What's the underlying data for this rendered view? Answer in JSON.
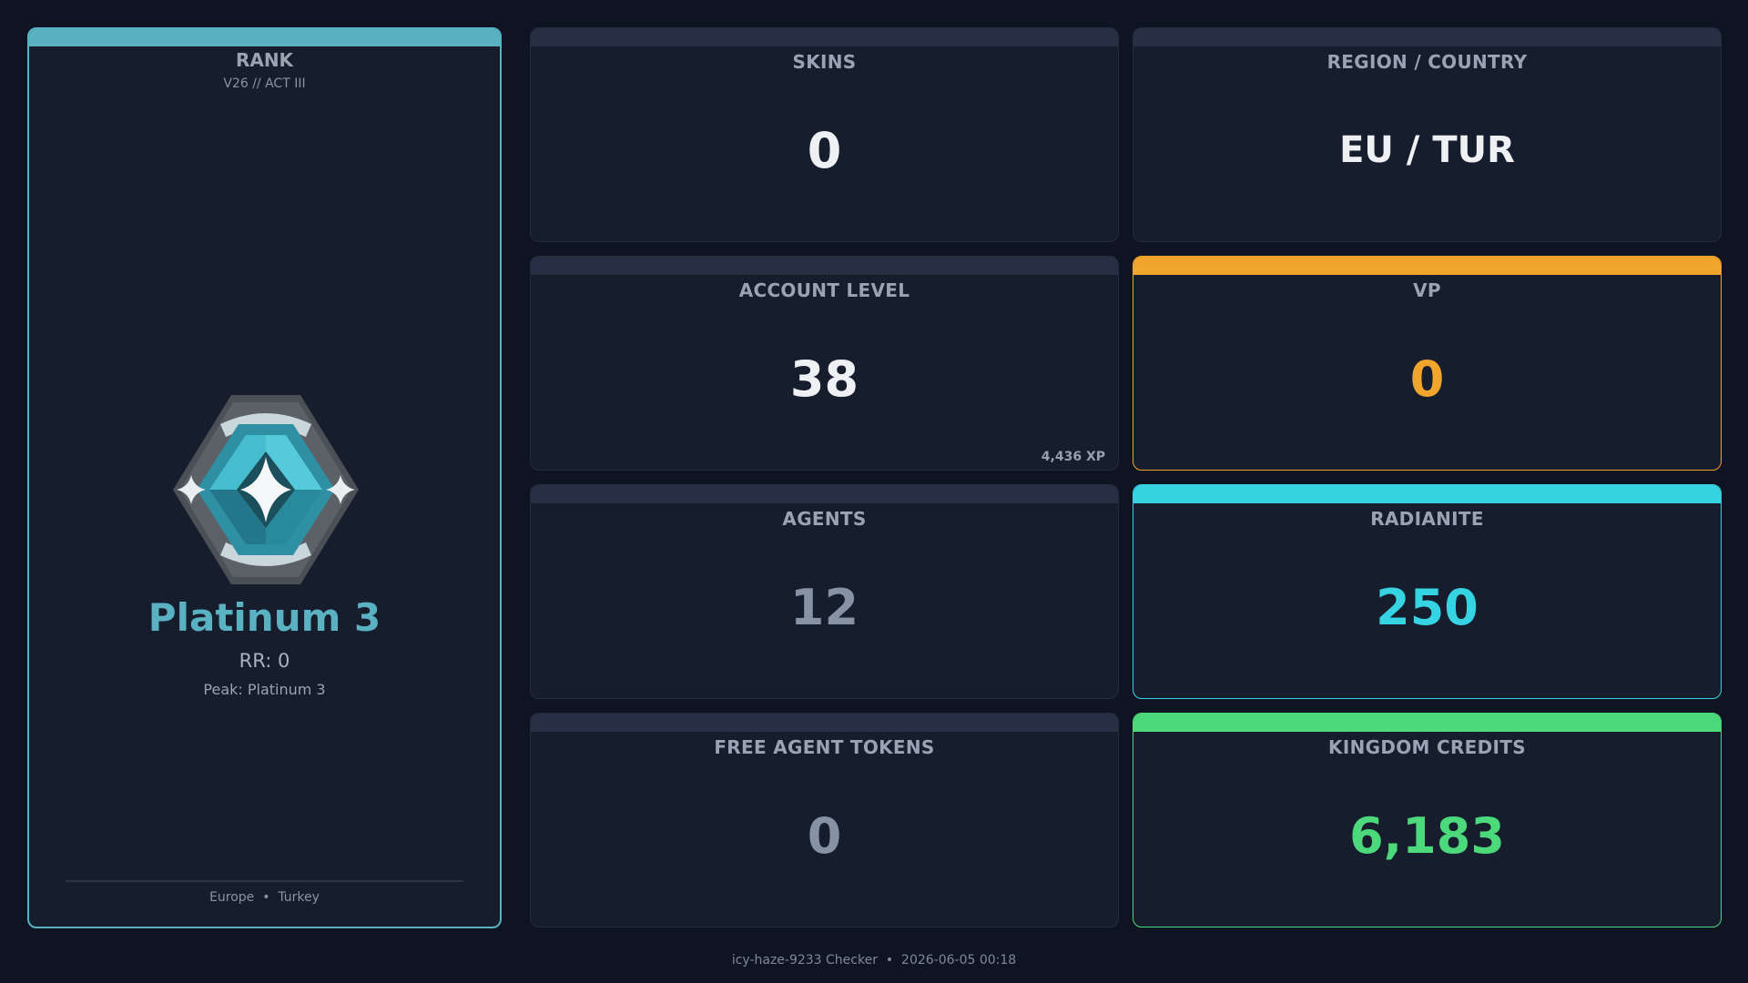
{
  "rank": {
    "title": "RANK",
    "act": "V26 // ACT III",
    "name": "Platinum 3",
    "rr": "RR: 0",
    "peak": "Peak: Platinum 3",
    "region_line": "Europe  •  Turkey",
    "color": "#5ab1c2",
    "icon": "platinum-rank-icon"
  },
  "stats": {
    "skins": {
      "label": "SKINS",
      "value": "0"
    },
    "region_country": {
      "label": "REGION / COUNTRY",
      "value": "EU / TUR"
    },
    "account_level": {
      "label": "ACCOUNT LEVEL",
      "value": "38",
      "xp": "4,436 XP"
    },
    "vp": {
      "label": "VP",
      "value": "0",
      "color": "#f2a52c"
    },
    "agents": {
      "label": "AGENTS",
      "value": "12"
    },
    "radianite": {
      "label": "RADIANITE",
      "value": "250",
      "color": "#36d3e3"
    },
    "free_agent_tokens": {
      "label": "FREE AGENT TOKENS",
      "value": "0"
    },
    "kingdom_credits": {
      "label": "KINGDOM CREDITS",
      "value": "6,183",
      "color": "#4cd97b"
    }
  },
  "footer": {
    "text": "icy-haze-9233 Checker  •  2026-06-05 00:18"
  }
}
